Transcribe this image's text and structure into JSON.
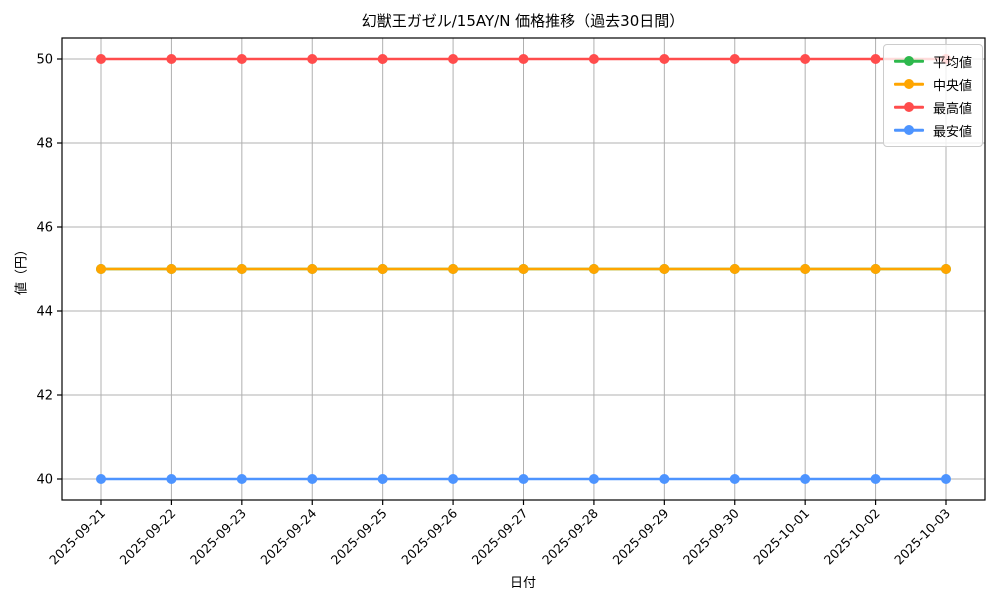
{
  "chart_data": {
    "type": "line",
    "title": "幻獣王ガゼル/15AY/N 価格推移（過去30日間）",
    "xlabel": "日付",
    "ylabel": "値（円）",
    "categories": [
      "2025-09-21",
      "2025-09-22",
      "2025-09-23",
      "2025-09-24",
      "2025-09-25",
      "2025-09-26",
      "2025-09-27",
      "2025-09-28",
      "2025-09-29",
      "2025-09-30",
      "2025-10-01",
      "2025-10-02",
      "2025-10-03"
    ],
    "series": [
      {
        "name": "平均値",
        "color": "#2DB84C",
        "values": [
          45,
          45,
          45,
          45,
          45,
          45,
          45,
          45,
          45,
          45,
          45,
          45,
          45
        ]
      },
      {
        "name": "中央値",
        "color": "#FFA500",
        "values": [
          45,
          45,
          45,
          45,
          45,
          45,
          45,
          45,
          45,
          45,
          45,
          45,
          45
        ]
      },
      {
        "name": "最高値",
        "color": "#FF4C4C",
        "values": [
          50,
          50,
          50,
          50,
          50,
          50,
          50,
          50,
          50,
          50,
          50,
          50,
          50
        ]
      },
      {
        "name": "最安値",
        "color": "#4D94FF",
        "values": [
          40,
          40,
          40,
          40,
          40,
          40,
          40,
          40,
          40,
          40,
          40,
          40,
          40
        ]
      }
    ],
    "ylim": [
      39.5,
      50.5
    ],
    "yticks": [
      40,
      42,
      44,
      46,
      48,
      50
    ],
    "grid": true,
    "grid_color": "#b0b0b0",
    "spine_color": "#000000",
    "legend_position": "upper right",
    "notes": "平均値 series is fully overlapped (hidden) by 中央値 series at value 45"
  }
}
